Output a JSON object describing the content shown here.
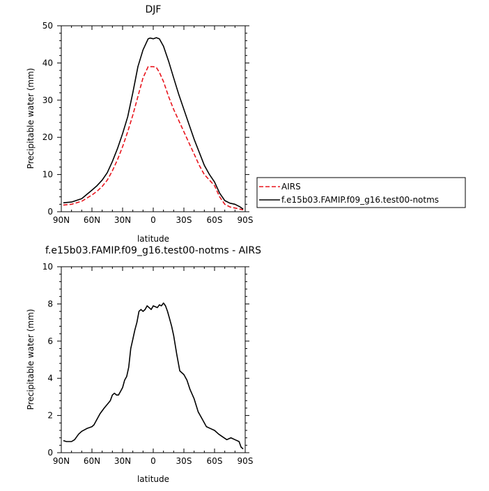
{
  "chart_data": [
    {
      "type": "line",
      "title": "DJF",
      "xlabel": "latitude",
      "ylabel": "Precipitable water (mm)",
      "xlim": [
        90,
        -90
      ],
      "ylim": [
        0,
        50
      ],
      "x_ticks": [
        90,
        60,
        30,
        0,
        -30,
        -60,
        -90
      ],
      "x_tick_labels": [
        "90N",
        "60N",
        "30N",
        "0",
        "30S",
        "60S",
        "90S"
      ],
      "y_ticks": [
        0,
        10,
        20,
        30,
        40,
        50
      ],
      "y_tick_labels": [
        "0",
        "10",
        "20",
        "30",
        "40",
        "50"
      ],
      "legend": {
        "placement": "right",
        "entries": [
          "AIRS",
          "f.e15b03.FAMIP.f09_g16.test00-notms"
        ]
      },
      "series": [
        {
          "name": "AIRS",
          "color": "#e8141c",
          "dash": "dashed",
          "x": [
            88,
            80,
            70,
            60,
            55,
            50,
            45,
            40,
            35,
            30,
            25,
            20,
            15,
            10,
            5,
            2,
            0,
            -3,
            -6,
            -10,
            -15,
            -20,
            -25,
            -30,
            -35,
            -40,
            -45,
            -50,
            -55,
            -60,
            -65,
            -70,
            -75,
            -80,
            -85,
            -88
          ],
          "y": [
            1.8,
            2.0,
            2.8,
            4.5,
            5.5,
            6.8,
            8.5,
            11,
            14,
            17.5,
            21.5,
            26,
            31,
            36,
            39,
            39,
            39,
            38.8,
            37.5,
            35,
            31,
            27.5,
            24.5,
            21.5,
            18.5,
            15.5,
            12.5,
            10,
            8.5,
            7,
            4,
            2,
            1.3,
            1.0,
            0.7,
            0.5
          ]
        },
        {
          "name": "f.e15b03.FAMIP.f09_g16.test00-notms",
          "color": "#000000",
          "dash": "solid",
          "x": [
            88,
            80,
            70,
            60,
            55,
            50,
            45,
            40,
            35,
            30,
            25,
            20,
            15,
            10,
            5,
            3,
            0,
            -3,
            -6,
            -10,
            -15,
            -20,
            -25,
            -30,
            -35,
            -40,
            -45,
            -50,
            -55,
            -60,
            -65,
            -70,
            -75,
            -80,
            -85,
            -88
          ],
          "y": [
            2.4,
            2.6,
            3.5,
            5.8,
            7.0,
            8.5,
            10.5,
            13.5,
            17,
            21,
            25.5,
            32,
            39,
            43.5,
            46.5,
            46.7,
            46.5,
            46.8,
            46.5,
            44.5,
            40.5,
            36,
            31.5,
            27.5,
            23.5,
            19.5,
            16,
            12.5,
            10,
            8,
            5,
            3,
            2.3,
            2.0,
            1.3,
            0.7
          ]
        }
      ]
    },
    {
      "type": "line",
      "title": "f.e15b03.FAMIP.f09_g16.test00-notms - AIRS",
      "xlabel": "latitude",
      "ylabel": "Precipitable water (mm)",
      "xlim": [
        90,
        -90
      ],
      "ylim": [
        0,
        10
      ],
      "x_ticks": [
        90,
        60,
        30,
        0,
        -30,
        -60,
        -90
      ],
      "x_tick_labels": [
        "90N",
        "60N",
        "30N",
        "0",
        "30S",
        "60S",
        "90S"
      ],
      "y_ticks": [
        0,
        2,
        4,
        6,
        8,
        10
      ],
      "y_tick_labels": [
        "0",
        "2",
        "4",
        "6",
        "8",
        "10"
      ],
      "series": [
        {
          "name": "f.e15b03.FAMIP.f09_g16.test00-notms - AIRS",
          "color": "#000000",
          "dash": "solid",
          "x": [
            88,
            85,
            80,
            77,
            73,
            70,
            65,
            60,
            58,
            55,
            52,
            48,
            45,
            42,
            40,
            38,
            36,
            34,
            32,
            30,
            28,
            26,
            24,
            22,
            20,
            18,
            16,
            14,
            12,
            10,
            8,
            6,
            4,
            2,
            0,
            -2,
            -4,
            -6,
            -8,
            -10,
            -12,
            -14,
            -16,
            -18,
            -20,
            -23,
            -26,
            -30,
            -33,
            -36,
            -40,
            -44,
            -48,
            -52,
            -56,
            -60,
            -64,
            -68,
            -72,
            -76,
            -80,
            -84,
            -86,
            -88
          ],
          "y": [
            0.65,
            0.6,
            0.6,
            0.7,
            1.0,
            1.15,
            1.3,
            1.4,
            1.5,
            1.8,
            2.1,
            2.4,
            2.6,
            2.8,
            3.1,
            3.2,
            3.1,
            3.1,
            3.3,
            3.5,
            3.9,
            4.1,
            4.6,
            5.6,
            6.1,
            6.6,
            7.0,
            7.6,
            7.7,
            7.6,
            7.7,
            7.9,
            7.8,
            7.7,
            7.9,
            7.85,
            7.8,
            7.95,
            7.9,
            8.05,
            7.9,
            7.6,
            7.2,
            6.8,
            6.3,
            5.3,
            4.4,
            4.2,
            3.9,
            3.4,
            2.9,
            2.2,
            1.8,
            1.4,
            1.3,
            1.2,
            1.0,
            0.85,
            0.7,
            0.8,
            0.7,
            0.6,
            0.3,
            0.2
          ]
        }
      ]
    }
  ]
}
